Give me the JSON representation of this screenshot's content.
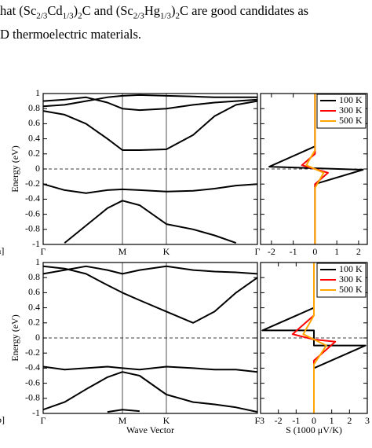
{
  "text": {
    "lines": [
      [
        {
          "t": "hat (Sc"
        },
        {
          "t": "2/3",
          "sub": true
        },
        {
          "t": "Cd"
        },
        {
          "t": "1/3",
          "sub": true
        },
        {
          "t": ")"
        },
        {
          "t": "2",
          "sub": true
        },
        {
          "t": "C and (Sc"
        },
        {
          "t": "2/3",
          "sub": true
        },
        {
          "t": "Hg"
        },
        {
          "t": "1/3",
          "sub": true
        },
        {
          "t": ")"
        },
        {
          "t": "2",
          "sub": true
        },
        {
          "t": "C are good candidates as"
        }
      ],
      [
        {
          "t": "D thermoelectric materials."
        }
      ]
    ]
  },
  "chart_data": [
    {
      "type": "line",
      "panel_label": "a]",
      "ylabel": "Energy (eV)",
      "x": [
        0,
        0.1,
        0.2,
        0.3,
        0.37,
        0.45,
        0.575,
        0.7,
        0.8,
        0.9,
        1
      ],
      "xlim": [
        0,
        1
      ],
      "ylim": [
        -1,
        1
      ],
      "xticks": [
        {
          "value": 0,
          "label": "Γ"
        },
        {
          "value": 0.37,
          "label": "M"
        },
        {
          "value": 0.575,
          "label": "K"
        },
        {
          "value": 1,
          "label": "Γ"
        }
      ],
      "xtick_lines": true,
      "yticks": [
        -1,
        -0.8,
        -0.6,
        -0.4,
        -0.2,
        0,
        0.2,
        0.4,
        0.6,
        0.8,
        1
      ],
      "ytick_labels": true,
      "zero_line": 0,
      "series": [
        {
          "color": "#000000",
          "values": [
            0.77,
            0.72,
            0.6,
            0.4,
            0.25,
            0.25,
            0.26,
            0.45,
            0.7,
            0.85,
            0.9
          ]
        },
        {
          "color": "#000000",
          "values": [
            0.9,
            0.92,
            0.95,
            0.88,
            0.8,
            0.78,
            0.8,
            0.85,
            0.88,
            0.9,
            0.92
          ]
        },
        {
          "color": "#000000",
          "values": [
            0.83,
            0.85,
            0.9,
            0.95,
            0.97,
            0.98,
            0.97,
            0.96,
            0.95,
            0.95,
            0.95
          ]
        },
        {
          "color": "#000000",
          "values": [
            -0.2,
            -0.28,
            -0.32,
            -0.28,
            -0.27,
            -0.28,
            -0.3,
            -0.29,
            -0.26,
            -0.22,
            -0.2
          ]
        },
        {
          "color": "#000000",
          "values": [
            null,
            -0.98,
            -0.75,
            -0.52,
            -0.42,
            -0.48,
            -0.73,
            -0.8,
            -0.88,
            -0.98,
            null
          ]
        }
      ]
    },
    {
      "type": "line",
      "xlim": [
        -2.5,
        2.4
      ],
      "ylim": [
        -1,
        1
      ],
      "xticks": [
        -2,
        -1,
        0,
        1,
        2
      ],
      "xtick_lines": false,
      "yticks": [
        -1,
        -0.8,
        -0.6,
        -0.4,
        -0.2,
        0,
        0.2,
        0.4,
        0.6,
        0.8,
        1
      ],
      "ytick_labels": false,
      "zero_line": 0,
      "legend": "upper right",
      "series": [
        {
          "name": "100 K",
          "color": "#000000",
          "x": [
            0,
            0,
            -2.1,
            2.2,
            0,
            0
          ],
          "values": [
            1,
            0.3,
            0.03,
            -0.01,
            -0.2,
            -1
          ]
        },
        {
          "name": "300 K",
          "color": "#ff0000",
          "x": [
            0,
            0,
            -0.6,
            0.6,
            0,
            0
          ],
          "values": [
            1,
            0.2,
            0.05,
            -0.05,
            -0.2,
            -1
          ]
        },
        {
          "name": "500 K",
          "color": "#ffa500",
          "x": [
            0,
            0,
            -0.4,
            0.4,
            0,
            0
          ],
          "values": [
            1,
            0.25,
            0.05,
            -0.05,
            -0.25,
            -1
          ]
        }
      ]
    },
    {
      "type": "line",
      "panel_label": "b]",
      "ylabel": "Energy (eV)",
      "xlabel": "Wave Vector",
      "x": [
        0,
        0.1,
        0.2,
        0.3,
        0.37,
        0.45,
        0.575,
        0.7,
        0.8,
        0.9,
        1
      ],
      "xlim": [
        0,
        1
      ],
      "ylim": [
        -1,
        1
      ],
      "xticks": [
        {
          "value": 0,
          "label": "Γ"
        },
        {
          "value": 0.37,
          "label": "M"
        },
        {
          "value": 0.575,
          "label": "K"
        },
        {
          "value": 1,
          "label": "Γ"
        }
      ],
      "xtick_lines": true,
      "yticks": [
        -1,
        -0.8,
        -0.6,
        -0.4,
        -0.2,
        0,
        0.2,
        0.4,
        0.6,
        0.8,
        1
      ],
      "ytick_labels": true,
      "zero_line": 0,
      "series": [
        {
          "color": "#000000",
          "values": [
            0.95,
            0.92,
            0.85,
            0.7,
            0.6,
            0.5,
            0.35,
            0.2,
            0.35,
            0.6,
            0.8
          ]
        },
        {
          "color": "#000000",
          "values": [
            0.85,
            0.9,
            0.95,
            0.9,
            0.85,
            0.9,
            0.95,
            0.9,
            0.88,
            0.87,
            0.85
          ]
        },
        {
          "color": "#000000",
          "values": [
            -0.38,
            -0.42,
            -0.4,
            -0.38,
            -0.4,
            -0.42,
            -0.38,
            -0.4,
            -0.42,
            -0.42,
            -0.45
          ]
        },
        {
          "color": "#000000",
          "values": [
            -0.95,
            -0.85,
            -0.68,
            -0.52,
            -0.45,
            -0.5,
            -0.75,
            -0.85,
            -0.88,
            -0.92,
            -0.98
          ]
        },
        {
          "color": "#000000",
          "values": [
            null,
            null,
            null,
            -0.98,
            -0.95,
            -0.97,
            null,
            null,
            null,
            null,
            null
          ]
        }
      ]
    },
    {
      "type": "line",
      "xlabel": "S (1000 μV/K)",
      "xlim": [
        -3,
        3
      ],
      "ylim": [
        -1,
        1
      ],
      "xticks": [
        -3,
        -2,
        -1,
        0,
        1,
        2,
        3
      ],
      "xtick_lines": false,
      "yticks": [
        -1,
        -0.8,
        -0.6,
        -0.4,
        -0.2,
        0,
        0.2,
        0.4,
        0.6,
        0.8,
        1
      ],
      "ytick_labels": false,
      "zero_line": 0,
      "legend": "upper right",
      "series": [
        {
          "name": "100 K",
          "color": "#000000",
          "x": [
            0,
            0,
            -2.9,
            0,
            0,
            2.9,
            0,
            0
          ],
          "values": [
            1,
            0.4,
            0.1,
            0.1,
            -0.1,
            -0.1,
            -0.4,
            -1
          ]
        },
        {
          "name": "300 K",
          "color": "#ff0000",
          "x": [
            0,
            0,
            -1.2,
            0,
            1.2,
            0,
            0
          ],
          "values": [
            1,
            0.3,
            0.05,
            -0.02,
            -0.05,
            -0.3,
            -1
          ]
        },
        {
          "name": "500 K",
          "color": "#ffa500",
          "x": [
            0,
            0,
            -0.6,
            0.7,
            0,
            0
          ],
          "values": [
            1,
            0.3,
            0.05,
            -0.1,
            -0.35,
            -1
          ]
        }
      ]
    }
  ]
}
